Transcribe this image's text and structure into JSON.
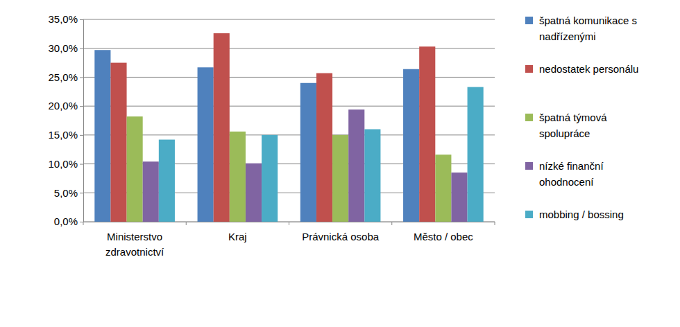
{
  "chart_data": {
    "type": "bar",
    "categories": [
      "Ministerstvo zdravotnictví",
      "Kraj",
      "Právnická osoba",
      "Město / obec"
    ],
    "series": [
      {
        "name": "špatná komunikace s nadřízenými",
        "color": "#4f81bd",
        "values": [
          29.7,
          26.7,
          24.0,
          26.4
        ]
      },
      {
        "name": "nedostatek personálu",
        "color": "#c0504d",
        "values": [
          27.5,
          32.6,
          25.7,
          30.3
        ]
      },
      {
        "name": "špatná týmová spolupráce",
        "color": "#9bbb59",
        "values": [
          18.2,
          15.6,
          15.0,
          11.6
        ]
      },
      {
        "name": "nízké finanční ohodnocení",
        "color": "#8064a2",
        "values": [
          10.4,
          10.1,
          19.4,
          8.5
        ]
      },
      {
        "name": "mobbing / bossing",
        "color": "#4bacc6",
        "values": [
          14.2,
          15.0,
          16.0,
          23.3
        ]
      }
    ],
    "ylim": [
      0,
      35
    ],
    "yticks": [
      {
        "value": 0,
        "label": "0,0%"
      },
      {
        "value": 5,
        "label": "5,0%"
      },
      {
        "value": 10,
        "label": "10,0%"
      },
      {
        "value": 15,
        "label": "15,0%"
      },
      {
        "value": 20,
        "label": "20,0%"
      },
      {
        "value": 25,
        "label": "25,0%"
      },
      {
        "value": 30,
        "label": "30,0%"
      },
      {
        "value": 35,
        "label": "35,0%"
      }
    ],
    "grid": true,
    "legend": "right"
  }
}
